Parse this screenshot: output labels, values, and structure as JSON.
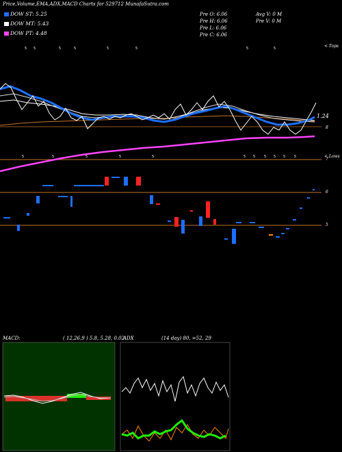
{
  "header": {
    "title": "Price,Volume,EMA,ADX,MACD Charts for 529712",
    "site": "MunafaSutra.com"
  },
  "legend": [
    {
      "label": "DOW ST: 5.25",
      "color": "#1e6fff"
    },
    {
      "label": "DOW MT: 5.43",
      "color": "#ffffff"
    },
    {
      "label": "DOW PT: 4.48",
      "color": "#ff44ff"
    }
  ],
  "ohlc": {
    "open": "Pre  O: 6.06",
    "high": "Pre  H: 6.06",
    "low": "Pre  L: 6.06",
    "close": "Pre  C: 6.06"
  },
  "volume": {
    "avg": "Avg V: 0  M",
    "prev": "Pre  V: 0  M"
  },
  "price_panel": {
    "top_label": "< Tops",
    "low_label": "< Lows",
    "last_price": "1.24",
    "axis_label_mid": "8",
    "axis_label_low": "7"
  },
  "volume_panel": {
    "axis_label_top": "6",
    "axis_label_bottom": "5"
  },
  "macd": {
    "title": "MACD:",
    "params": "( 12,26,9 ) 5.8,  5.28,  0.02"
  },
  "adx": {
    "title": "ADX",
    "params": "(14  day) 80,  =52,  29"
  },
  "colors": {
    "ema_blue": "#1e6fff",
    "price_white": "#ffffff",
    "dow_pt_magenta": "#ff44ff",
    "ema_orange": "#c8742a",
    "macd_bg": "#003300",
    "macd_hist": "#ff3333",
    "adx_green": "#22ee00",
    "adx_orange": "#ff8800",
    "bull_bar": "#1e6fff",
    "bear_bar": "#ff2222"
  }
}
